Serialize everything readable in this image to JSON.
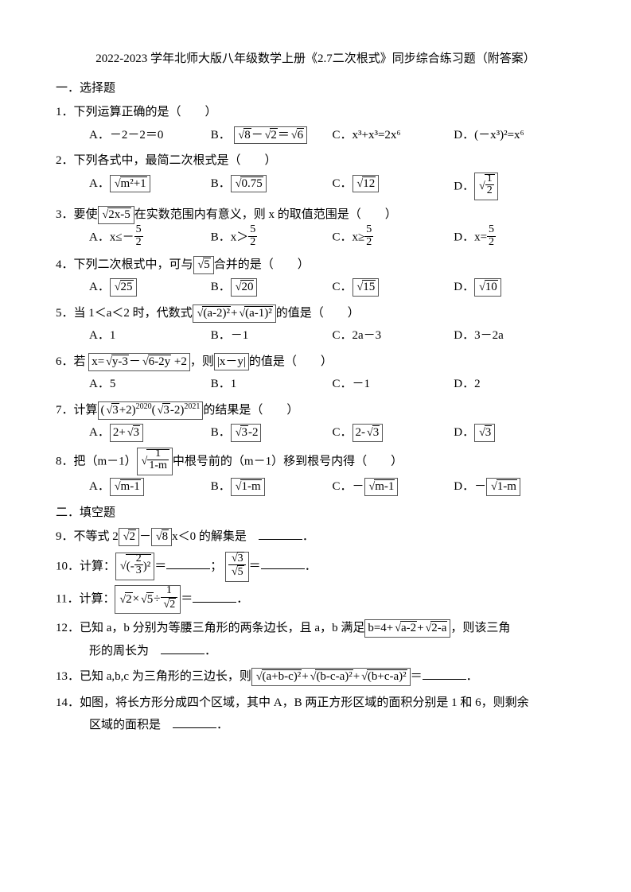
{
  "title": "2022-2023 学年北师大版八年级数学上册《2.7二次根式》同步综合练习题（附答案）",
  "section1": "一．选择题",
  "section2": "二．填空题",
  "q1": {
    "stem": "1．下列运算正确的是（　　）",
    "A": "A．－2－2＝0",
    "B_pre": "B．",
    "B_r1": "8",
    "B_sep": "－",
    "B_r2": "2",
    "B_eq": "＝",
    "B_r3": "6",
    "C": "C．x³+x³=2x⁶",
    "D": "D．(－x³)²=x⁶"
  },
  "q2": {
    "stem": "2．下列各式中，最简二次根式是（　　）",
    "A_pre": "A．",
    "A_r": "m²+1",
    "B_pre": "B．",
    "B_r": "0.75",
    "C_pre": "C．",
    "C_r": "12",
    "D_pre": "D．",
    "D_num": "1",
    "D_den": "2"
  },
  "q3": {
    "stem_pre": "3．要使",
    "stem_r": "2x-5",
    "stem_post": "在实数范围内有意义，则 x 的取值范围是（　　）",
    "A_pre": "A．x≤－",
    "A_num": "5",
    "A_den": "2",
    "B_pre": "B．x＞",
    "B_num": "5",
    "B_den": "2",
    "C_pre": "C．x≥",
    "C_num": "5",
    "C_den": "2",
    "D_pre": "D．x=",
    "D_num": "5",
    "D_den": "2"
  },
  "q4": {
    "stem_pre": "4．下列二次根式中，可与",
    "stem_r": "5",
    "stem_post": "合并的是（　　）",
    "A_pre": "A．",
    "A_r": "25",
    "B_pre": "B．",
    "B_r": "20",
    "C_pre": "C．",
    "C_r": "15",
    "D_pre": "D．",
    "D_r": "10"
  },
  "q5": {
    "stem_pre": "5．当 1＜a＜2 时，代数式",
    "r1": "(a-2)²",
    "plus": "+",
    "r2": "(a-1)²",
    "stem_post": "的值是（　　）",
    "A": "A．1",
    "B": "B．－1",
    "C": "C．2a－3",
    "D": "D．3－2a"
  },
  "q6": {
    "stem_pre": "6．若 ",
    "expr_x": "x=",
    "r1": "y-3",
    "minus": "－",
    "r2": "6-2y",
    "tail": " +2",
    "stem_mid": "，则",
    "abs": "|x－y|",
    "stem_post": "的值是（　　）",
    "A": "A．5",
    "B": "B．1",
    "C": "C．－1",
    "D": "D．2"
  },
  "q7": {
    "stem_pre": "7．计算",
    "p1_l": "(",
    "r1": "3",
    "p1_r": "+2)",
    "e1": "2020",
    "p2_l": "(",
    "r2": "3",
    "p2_r": "-2)",
    "e2": "2021",
    "stem_post": "的结果是（　　）",
    "A_pre": "A．",
    "A_box_l": "2+",
    "A_r": "3",
    "B_pre": "B．",
    "B_r": "3",
    "B_box_r": "-2",
    "C_pre": "C．",
    "C_box_l": "2-",
    "C_r": "3",
    "D_pre": "D．",
    "D_r": "3"
  },
  "q8": {
    "stem_pre": "8．把（m－1）",
    "num": "1",
    "den": "1-m",
    "stem_post": "中根号前的（m－1）移到根号内得（　　）",
    "A_pre": "A．",
    "A_r": "m-1",
    "B_pre": "B．",
    "B_r": "1-m",
    "C_pre": "C．－",
    "C_r": "m-1",
    "D_pre": "D．－",
    "D_r": "1-m"
  },
  "q9": {
    "pre": "9．不等式 2",
    "r1": "2",
    "mid": "－",
    "r2": "8",
    "post": "x＜0 的解集是　"
  },
  "q10": {
    "pre": "10．计算：",
    "neg": "(-",
    "num1": "2",
    "den1": "3",
    "close": ")²",
    "eq1": "＝",
    "sep": "；",
    "r_num": "3",
    "r_den": "5",
    "eq2": "＝"
  },
  "q11": {
    "pre": "11．计算：",
    "r1": "2",
    "times": "×",
    "r2": "5",
    "div": "÷",
    "den_r": "2",
    "num": "1",
    "eq": "＝"
  },
  "q12": {
    "pre": "12．已知 a，b 分别为等腰三角形的两条边长，且 a，b 满足",
    "expr_b": "b=4+",
    "r1": "a-2",
    "plus": "+",
    "r2": "2-a",
    "mid": "，则该三角",
    "line2": "形的周长为　"
  },
  "q13": {
    "pre": "13．已知 a,b,c 为三角形的三边长，则",
    "r1": "(a+b-c)²",
    "p1": "+",
    "r2": "(b-c-a)²",
    "p2": "+",
    "r3": "(b+c-a)²",
    "eq": "＝"
  },
  "q14": {
    "pre": "14．如图，将长方形分成四个区域，其中 A，B 两正方形区域的面积分别是 1 和 6，则剩余",
    "line2": "区域的面积是　"
  },
  "period": "．"
}
